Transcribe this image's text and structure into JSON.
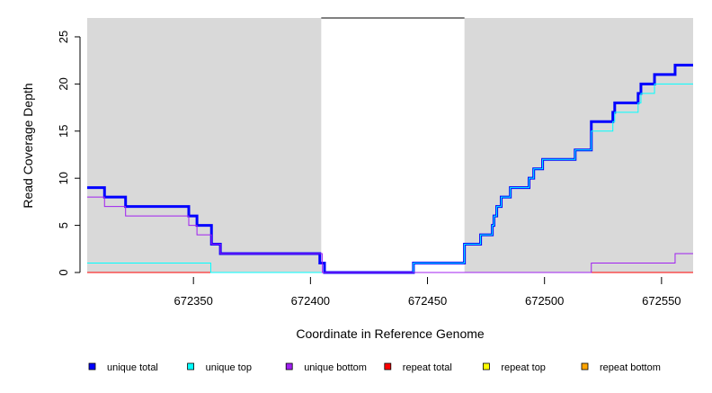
{
  "chart_data": {
    "type": "line",
    "step": true,
    "xlabel": "Coordinate in Reference Genome",
    "ylabel": "Read Coverage Depth",
    "xlim": [
      672304.6,
      672563.5
    ],
    "ylim": [
      0,
      27
    ],
    "xticks": [
      672350,
      672400,
      672450,
      672500,
      672550
    ],
    "yticks": [
      0,
      5,
      10,
      15,
      20,
      25
    ],
    "shaded_background": "#d9d9d9",
    "unshaded_region": [
      672404.6,
      672465.8
    ],
    "legend_position": "bottom",
    "series": [
      {
        "name": "repeat bottom",
        "color": "#ffa500",
        "width": 1,
        "steps": [
          [
            672304.6,
            0
          ]
        ]
      },
      {
        "name": "repeat top",
        "color": "#ffff00",
        "width": 1,
        "steps": [
          [
            672304.6,
            0
          ]
        ]
      },
      {
        "name": "repeat total",
        "color": "#ff0000",
        "width": 1,
        "steps": [
          [
            672304.6,
            0
          ]
        ]
      },
      {
        "name": "unique total",
        "color": "#0000ff",
        "width": 3,
        "steps": [
          [
            672304.6,
            9
          ],
          [
            672312,
            8
          ],
          [
            672321,
            7
          ],
          [
            672348,
            6
          ],
          [
            672351.5,
            5
          ],
          [
            672357.7,
            3
          ],
          [
            672361.5,
            2
          ],
          [
            672404,
            1
          ],
          [
            672406,
            0
          ],
          [
            672444,
            1
          ],
          [
            672465.8,
            3
          ],
          [
            672472.7,
            4
          ],
          [
            672477.7,
            5
          ],
          [
            672478.4,
            6
          ],
          [
            672479.6,
            7
          ],
          [
            672481.5,
            8
          ],
          [
            672485.4,
            9
          ],
          [
            672493.4,
            10
          ],
          [
            672495.4,
            11
          ],
          [
            672499.2,
            12
          ],
          [
            672513.1,
            13
          ],
          [
            672520,
            16
          ],
          [
            672529.2,
            17
          ],
          [
            672530,
            18
          ],
          [
            672540,
            19
          ],
          [
            672541.2,
            20
          ],
          [
            672547,
            21
          ],
          [
            672555.8,
            22
          ]
        ]
      },
      {
        "name": "unique top",
        "color": "#00ffff",
        "width": 1,
        "steps": [
          [
            672304.6,
            1
          ],
          [
            672357.4,
            0
          ],
          [
            672444,
            1
          ],
          [
            672465.8,
            3
          ],
          [
            672472.7,
            4
          ],
          [
            672477.7,
            5
          ],
          [
            672478.4,
            6
          ],
          [
            672479.6,
            7
          ],
          [
            672481.5,
            8
          ],
          [
            672485.4,
            9
          ],
          [
            672493.4,
            10
          ],
          [
            672495.4,
            11
          ],
          [
            672499.2,
            12
          ],
          [
            672513.1,
            13
          ],
          [
            672520,
            15
          ],
          [
            672529.2,
            16
          ],
          [
            672530,
            17
          ],
          [
            672540,
            18
          ],
          [
            672541.2,
            19
          ],
          [
            672547,
            20
          ]
        ]
      },
      {
        "name": "unique bottom",
        "color": "#a020f0",
        "width": 1,
        "steps": [
          [
            672304.6,
            8
          ],
          [
            672312,
            7
          ],
          [
            672321,
            6
          ],
          [
            672348,
            5
          ],
          [
            672351.5,
            4
          ],
          [
            672357.7,
            3
          ],
          [
            672361.5,
            2
          ],
          [
            672405,
            0
          ],
          [
            672520,
            1
          ],
          [
            672555.8,
            2
          ]
        ]
      }
    ],
    "legend": [
      {
        "label": "unique total",
        "color": "#0000ff"
      },
      {
        "label": "unique top",
        "color": "#00ffff"
      },
      {
        "label": "unique bottom",
        "color": "#a020f0"
      },
      {
        "label": "repeat total",
        "color": "#ff0000"
      },
      {
        "label": "repeat top",
        "color": "#ffff00"
      },
      {
        "label": "repeat bottom",
        "color": "#ffa500"
      }
    ]
  }
}
